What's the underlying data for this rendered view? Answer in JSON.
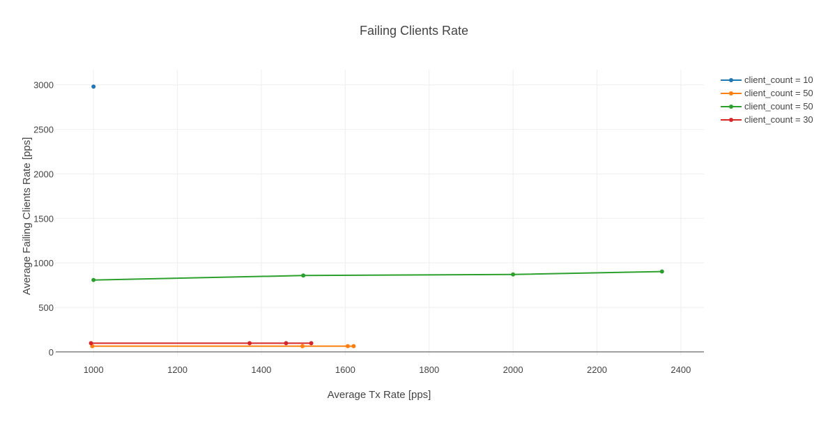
{
  "chart_data": {
    "type": "line",
    "title": "Failing Clients Rate",
    "xlabel": "Average Tx Rate [pps]",
    "ylabel": "Average Failing Clients Rate [pps]",
    "xlim": [
      910,
      2455
    ],
    "ylim": [
      -40,
      3170
    ],
    "xticks": [
      1000,
      1200,
      1400,
      1600,
      1800,
      2000,
      2200,
      2400
    ],
    "yticks": [
      0,
      500,
      1000,
      1500,
      2000,
      2500,
      3000
    ],
    "grid": true,
    "legend_position": "top-right",
    "series": [
      {
        "name": "client_count = 10",
        "color": "#1f77b4",
        "points": [
          [
            1000,
            2980
          ]
        ]
      },
      {
        "name": "client_count = 50",
        "color": "#ff7f0e",
        "points": [
          [
            997,
            65
          ],
          [
            1498,
            65
          ],
          [
            1606,
            65
          ],
          [
            1620,
            65
          ]
        ]
      },
      {
        "name": "client_count = 50",
        "color": "#2ca02c",
        "points": [
          [
            1000,
            808
          ],
          [
            1500,
            858
          ],
          [
            2000,
            870
          ],
          [
            2355,
            903
          ]
        ]
      },
      {
        "name": "client_count = 30",
        "color": "#d62728",
        "points": [
          [
            994,
            98
          ],
          [
            1372,
            98
          ],
          [
            1459,
            98
          ],
          [
            1519,
            98
          ]
        ]
      }
    ]
  }
}
